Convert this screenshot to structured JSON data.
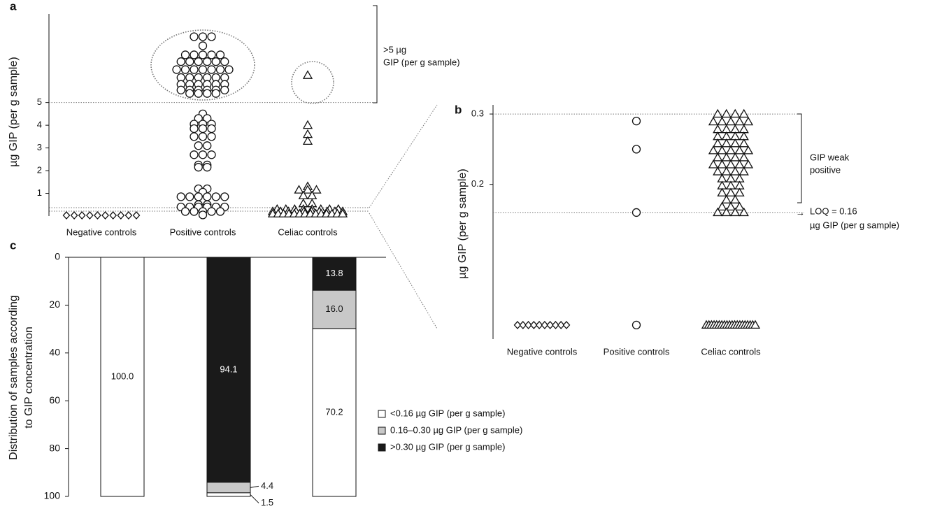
{
  "chart_data": [
    {
      "type": "strip",
      "panel": "a",
      "y_label": "µg GIP (per g sample)",
      "annotation": [
        ">5 µg",
        "GIP (per g sample)"
      ],
      "categories": [
        "Negative controls",
        "Positive controls",
        "Celiac controls"
      ],
      "markers": [
        "diamond",
        "circle",
        "triangle"
      ],
      "ylim": [
        0,
        8.9
      ],
      "yticks": [
        1,
        2,
        3,
        4,
        5
      ],
      "ref_lines": [
        5
      ],
      "values": [
        [
          0.03,
          0.03,
          0.03,
          0.03,
          0.03,
          0.03,
          0.03,
          0.03,
          0.03,
          0.03
        ],
        [
          7.9,
          7.9,
          7.9,
          7.5,
          7.1,
          7.1,
          7.1,
          7.1,
          7.1,
          6.8,
          6.8,
          6.8,
          6.8,
          6.8,
          6.8,
          6.45,
          6.45,
          6.45,
          6.45,
          6.45,
          6.45,
          6.45,
          6.1,
          6.1,
          6.1,
          6.1,
          6.1,
          6.1,
          5.8,
          5.8,
          5.8,
          5.8,
          5.8,
          5.8,
          5.55,
          5.55,
          5.55,
          5.55,
          5.55,
          5.55,
          5.4,
          5.4,
          5.4,
          5.4,
          4.5,
          4.3,
          4.3,
          4.05,
          4.05,
          4.05,
          3.85,
          3.85,
          3.85,
          3.5,
          3.5,
          3.5,
          3.1,
          3.1,
          2.7,
          2.7,
          2.7,
          2.25,
          2.25,
          2.15,
          2.15,
          1.2,
          1.2,
          1.05,
          0.85,
          0.85,
          0.85,
          0.85,
          0.85,
          0.85,
          0.5,
          0.5,
          0.4,
          0.4,
          0.4,
          0.4,
          0.4,
          0.4,
          0.2,
          0.2,
          0.2,
          0.2,
          0.2,
          0.05
        ],
        [
          6.2,
          4.0,
          3.6,
          3.3,
          1.3,
          1.15,
          1.15,
          1.15,
          0.9,
          0.9,
          0.55,
          0.55,
          0.3,
          0.3,
          0.3,
          0.3,
          0.3,
          0.3,
          0.3,
          0.3,
          0.2,
          0.2,
          0.2,
          0.2,
          0.2,
          0.2,
          0.2,
          0.2,
          0.2,
          0.2,
          0.1,
          0.1,
          0.1,
          0.1,
          0.1,
          0.1,
          0.1,
          0.1,
          0.1,
          0.1,
          0.1,
          0.1,
          0.1,
          0.1
        ]
      ]
    },
    {
      "type": "strip",
      "panel": "b",
      "y_label": "µg GIP (per g sample)",
      "annotation": [
        "GIP weak",
        "positive"
      ],
      "loq_label": [
        "LOQ = 0.16",
        "µg GIP (per g sample)"
      ],
      "categories": [
        "Negative controls",
        "Positive controls",
        "Celiac controls"
      ],
      "markers": [
        "diamond",
        "circle",
        "triangle"
      ],
      "ylim": [
        -0.02,
        0.313
      ],
      "yticks": [
        0.2,
        0.3
      ],
      "ref_lines": [
        0.3,
        0.16
      ],
      "values": [
        [
          0,
          0,
          0,
          0,
          0,
          0,
          0,
          0,
          0,
          0
        ],
        [
          0.29,
          0.25,
          0.16,
          0
        ],
        [
          0.3,
          0.3,
          0.3,
          0.3,
          0.289,
          0.289,
          0.289,
          0.289,
          0.289,
          0.278,
          0.278,
          0.278,
          0.278,
          0.268,
          0.268,
          0.268,
          0.268,
          0.258,
          0.258,
          0.258,
          0.258,
          0.248,
          0.248,
          0.248,
          0.248,
          0.248,
          0.238,
          0.238,
          0.238,
          0.238,
          0.228,
          0.228,
          0.228,
          0.228,
          0.228,
          0.218,
          0.218,
          0.218,
          0.218,
          0.208,
          0.208,
          0.208,
          0.198,
          0.198,
          0.198,
          0.188,
          0.188,
          0.188,
          0.178,
          0.178,
          0.168,
          0.168,
          0.168,
          0.16,
          0.16,
          0.16,
          0.16,
          0,
          0,
          0,
          0,
          0,
          0,
          0,
          0,
          0,
          0,
          0,
          0,
          0,
          0,
          0,
          0,
          0,
          0,
          0,
          0
        ]
      ]
    },
    {
      "type": "stacked_bar",
      "panel": "c",
      "y_label": [
        "Distribution of samples according",
        "to GIP concentration"
      ],
      "categories": [
        null,
        null,
        null
      ],
      "ylim": [
        100,
        0
      ],
      "yticks": [
        0,
        20,
        40,
        60,
        80,
        100
      ],
      "series": [
        {
          "name": "<0.16 µg GIP (per g sample)",
          "color": "#ffffff",
          "values": [
            100,
            1.5,
            70.2
          ],
          "value_labels": [
            "100.0",
            "1.5",
            "70.2"
          ]
        },
        {
          "name": "0.16–0.30 µg GIP (per g sample)",
          "color": "#c8c8c8",
          "values": [
            0,
            4.4,
            16
          ],
          "value_labels": [
            null,
            "4.4",
            "16.0"
          ]
        },
        {
          "name": ">0.30 µg GIP (per g sample)",
          "color": "#1a1a1a",
          "values": [
            0,
            94.1,
            13.8
          ],
          "value_labels": [
            null,
            "94.1",
            "13.8"
          ]
        }
      ]
    }
  ]
}
